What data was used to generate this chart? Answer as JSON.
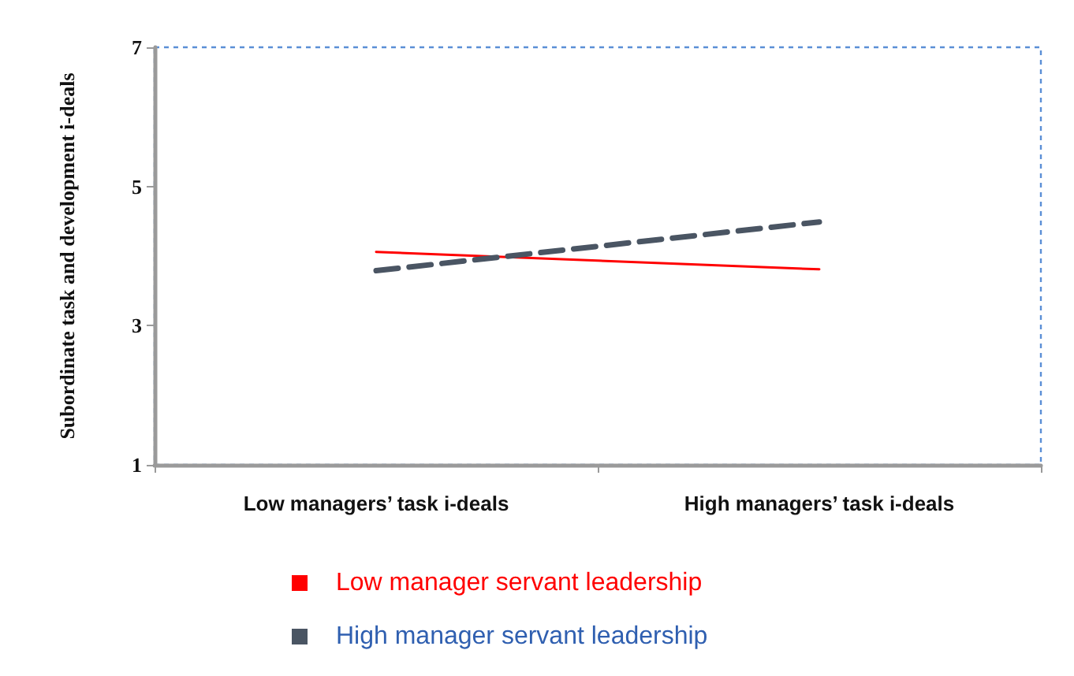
{
  "chart_data": {
    "type": "line",
    "ylabel": "Subordinate task and development i-deals",
    "categories": [
      "Low managers’ task i-deals",
      "High managers’ task i-deals"
    ],
    "ylim": [
      1,
      7
    ],
    "yticks": [
      1,
      3,
      5,
      7
    ],
    "grid": false,
    "legend": "bottom",
    "marker": "none",
    "series": [
      {
        "name": "Low manager servant leadership",
        "color": "#ff0000",
        "values": [
          4.06,
          3.81
        ],
        "line_style": "solid"
      },
      {
        "name": "High manager servant leadership",
        "color": "#4a5563",
        "values": [
          3.79,
          4.49
        ],
        "line_style": "dashed"
      }
    ]
  }
}
